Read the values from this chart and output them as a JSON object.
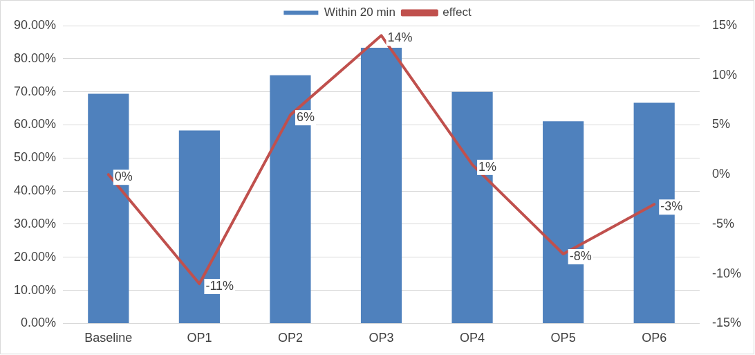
{
  "chart_data": {
    "type": "bar",
    "categories": [
      "Baseline",
      "OP1",
      "OP2",
      "OP3",
      "OP4",
      "OP5",
      "OP6"
    ],
    "series": [
      {
        "name": "Within 20 min",
        "color": "#4f81bd",
        "values": [
          69.4,
          58.3,
          75.0,
          83.3,
          70.0,
          61.1,
          66.7
        ]
      },
      {
        "name": "effect",
        "type": "line",
        "axis": "y2",
        "color": "#c0504d",
        "marker": "none",
        "values": [
          0,
          -11,
          6,
          14,
          1,
          -8,
          -3
        ],
        "value_labels": [
          "0%",
          "-11%",
          "6%",
          "14%",
          "1%",
          "-8%",
          "-3%"
        ]
      }
    ],
    "ylim": [
      0,
      90
    ],
    "yticks": [
      {
        "value": 0,
        "label": "0.00%"
      },
      {
        "value": 10,
        "label": "10.00%"
      },
      {
        "value": 20,
        "label": "20.00%"
      },
      {
        "value": 30,
        "label": "30.00%"
      },
      {
        "value": 40,
        "label": "40.00%"
      },
      {
        "value": 50,
        "label": "50.00%"
      },
      {
        "value": 60,
        "label": "60.00%"
      },
      {
        "value": 70,
        "label": "70.00%"
      },
      {
        "value": 80,
        "label": "80.00%"
      },
      {
        "value": 90,
        "label": "90.00%"
      }
    ],
    "y2lim": [
      -15,
      15
    ],
    "y2ticks": [
      {
        "value": -15,
        "label": "-15%"
      },
      {
        "value": -10,
        "label": "-10%"
      },
      {
        "value": -5,
        "label": "-5%"
      },
      {
        "value": 0,
        "label": "0%"
      },
      {
        "value": 5,
        "label": "5%"
      },
      {
        "value": 10,
        "label": "10%"
      },
      {
        "value": 15,
        "label": "15%"
      }
    ],
    "grid": "y",
    "legend": "top"
  }
}
